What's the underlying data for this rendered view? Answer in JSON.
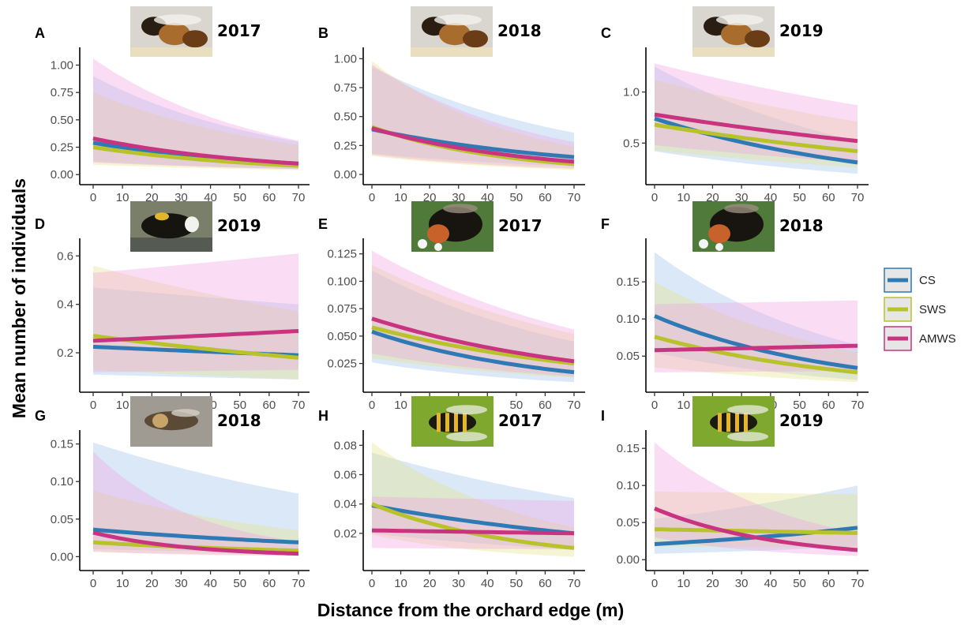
{
  "figure": {
    "xlabel": "Distance from the orchard edge (m)",
    "ylabel": "Mean number of individuals",
    "legend": {
      "placement": "right",
      "entries": [
        {
          "name": "CS",
          "color": "#2f79b5"
        },
        {
          "name": "SWS",
          "color": "#b8c22a"
        },
        {
          "name": "AMWS",
          "color": "#c8347f"
        }
      ]
    }
  },
  "chart_data": [
    {
      "panel": "A",
      "year": "2017",
      "photo": "honeybee-photo",
      "type": "line",
      "x": [
        0,
        70
      ],
      "xticks": [
        0,
        10,
        20,
        30,
        40,
        50,
        60,
        70
      ],
      "ylim": [
        -0.02,
        1.09
      ],
      "yticks": [
        0,
        0.25,
        0.5,
        0.75,
        1.0
      ],
      "yticklabels": [
        "0.00",
        "0.25",
        "0.50",
        "0.75",
        "1.00"
      ],
      "series": [
        {
          "name": "CS",
          "values": [
            0.29,
            0.1
          ],
          "lower": [
            0.12,
            0.05
          ],
          "upper": [
            0.9,
            0.3
          ]
        },
        {
          "name": "SWS",
          "values": [
            0.25,
            0.08
          ],
          "lower": [
            0.09,
            0.04
          ],
          "upper": [
            0.75,
            0.27
          ]
        },
        {
          "name": "AMWS",
          "values": [
            0.33,
            0.1
          ],
          "lower": [
            0.11,
            0.05
          ],
          "upper": [
            1.06,
            0.31
          ]
        }
      ]
    },
    {
      "panel": "B",
      "year": "2018",
      "photo": "honeybee-photo",
      "type": "line",
      "x": [
        0,
        70
      ],
      "xticks": [
        0,
        10,
        20,
        30,
        40,
        50,
        60,
        70
      ],
      "ylim": [
        -0.02,
        1.03
      ],
      "yticks": [
        0,
        0.25,
        0.5,
        0.75,
        1.0
      ],
      "yticklabels": [
        "0.00",
        "0.25",
        "0.50",
        "0.75",
        "1.00"
      ],
      "series": [
        {
          "name": "CS",
          "values": [
            0.39,
            0.15
          ],
          "lower": [
            0.18,
            0.07
          ],
          "upper": [
            0.93,
            0.36
          ]
        },
        {
          "name": "SWS",
          "values": [
            0.41,
            0.09
          ],
          "lower": [
            0.16,
            0.04
          ],
          "upper": [
            0.98,
            0.24
          ]
        },
        {
          "name": "AMWS",
          "values": [
            0.4,
            0.11
          ],
          "lower": [
            0.17,
            0.05
          ],
          "upper": [
            0.95,
            0.28
          ]
        }
      ]
    },
    {
      "panel": "C",
      "year": "2019",
      "photo": "honeybee-photo",
      "type": "line",
      "x": [
        0,
        70
      ],
      "xticks": [
        0,
        10,
        20,
        30,
        40,
        50,
        60,
        70
      ],
      "ylim": [
        0.17,
        1.36
      ],
      "yticks": [
        0.5,
        1.0
      ],
      "yticklabels": [
        "0.5",
        "1.0"
      ],
      "series": [
        {
          "name": "CS",
          "values": [
            0.74,
            0.31
          ],
          "lower": [
            0.42,
            0.2
          ],
          "upper": [
            1.25,
            0.52
          ]
        },
        {
          "name": "SWS",
          "values": [
            0.68,
            0.42
          ],
          "lower": [
            0.43,
            0.26
          ],
          "upper": [
            1.12,
            0.71
          ]
        },
        {
          "name": "AMWS",
          "values": [
            0.78,
            0.52
          ],
          "lower": [
            0.48,
            0.31
          ],
          "upper": [
            1.28,
            0.87
          ]
        }
      ]
    },
    {
      "panel": "D",
      "year": "2019",
      "photo": "bumblebee-photo",
      "type": "line",
      "x": [
        0,
        70
      ],
      "xticks": [
        0,
        10,
        20,
        30,
        40,
        50,
        60,
        70
      ],
      "ylim": [
        0.07,
        0.64
      ],
      "yticks": [
        0.2,
        0.4,
        0.6
      ],
      "yticklabels": [
        "0.2",
        "0.4",
        "0.6"
      ],
      "series": [
        {
          "name": "CS",
          "values": [
            0.225,
            0.19
          ],
          "lower": [
            0.11,
            0.09
          ],
          "upper": [
            0.47,
            0.4
          ]
        },
        {
          "name": "SWS",
          "values": [
            0.27,
            0.18
          ],
          "lower": [
            0.13,
            0.09
          ],
          "upper": [
            0.56,
            0.37
          ]
        },
        {
          "name": "AMWS",
          "values": [
            0.25,
            0.29
          ],
          "lower": [
            0.12,
            0.13
          ],
          "upper": [
            0.53,
            0.61
          ]
        }
      ]
    },
    {
      "panel": "E",
      "year": "2017",
      "photo": "buff-tailed-bumblebee-photo",
      "type": "line",
      "x": [
        0,
        70
      ],
      "xticks": [
        0,
        10,
        20,
        30,
        40,
        50,
        60,
        70
      ],
      "ylim": [
        0.006,
        0.132
      ],
      "yticks": [
        0.025,
        0.05,
        0.075,
        0.1,
        0.125
      ],
      "yticklabels": [
        "0.025",
        "0.050",
        "0.075",
        "0.100",
        "0.125"
      ],
      "series": [
        {
          "name": "CS",
          "values": [
            0.054,
            0.017
          ],
          "lower": [
            0.026,
            0.008
          ],
          "upper": [
            0.11,
            0.045
          ]
        },
        {
          "name": "SWS",
          "values": [
            0.058,
            0.025
          ],
          "lower": [
            0.03,
            0.012
          ],
          "upper": [
            0.115,
            0.052
          ]
        },
        {
          "name": "AMWS",
          "values": [
            0.066,
            0.027
          ],
          "lower": [
            0.034,
            0.013
          ],
          "upper": [
            0.128,
            0.056
          ]
        }
      ]
    },
    {
      "panel": "F",
      "year": "2018",
      "photo": "buff-tailed-bumblebee-photo",
      "type": "line",
      "x": [
        0,
        70
      ],
      "xticks": [
        0,
        10,
        20,
        30,
        40,
        50,
        60,
        70
      ],
      "ylim": [
        0.012,
        0.198
      ],
      "yticks": [
        0.05,
        0.1,
        0.15
      ],
      "yticklabels": [
        "0.05",
        "0.10",
        "0.15"
      ],
      "series": [
        {
          "name": "CS",
          "values": [
            0.104,
            0.034
          ],
          "lower": [
            0.055,
            0.018
          ],
          "upper": [
            0.19,
            0.065
          ]
        },
        {
          "name": "SWS",
          "values": [
            0.076,
            0.028
          ],
          "lower": [
            0.035,
            0.015
          ],
          "upper": [
            0.15,
            0.055
          ]
        },
        {
          "name": "AMWS",
          "values": [
            0.058,
            0.064
          ],
          "lower": [
            0.028,
            0.03
          ],
          "upper": [
            0.12,
            0.125
          ]
        }
      ]
    },
    {
      "panel": "G",
      "year": "2018",
      "photo": "solitary-bee-photo",
      "type": "line",
      "x": [
        0,
        70
      ],
      "xticks": [
        0,
        10,
        20,
        30,
        40,
        50,
        60,
        70
      ],
      "ylim": [
        -0.008,
        0.158
      ],
      "yticks": [
        0,
        0.05,
        0.1,
        0.15
      ],
      "yticklabels": [
        "0.00",
        "0.05",
        "0.10",
        "0.15"
      ],
      "series": [
        {
          "name": "CS",
          "values": [
            0.036,
            0.019
          ],
          "lower": [
            0.01,
            0.005
          ],
          "upper": [
            0.152,
            0.084
          ]
        },
        {
          "name": "SWS",
          "values": [
            0.019,
            0.008
          ],
          "lower": [
            0.006,
            0.002
          ],
          "upper": [
            0.088,
            0.035
          ]
        },
        {
          "name": "AMWS",
          "values": [
            0.032,
            0.004
          ],
          "lower": [
            0.007,
            0.001
          ],
          "upper": [
            0.14,
            0.02
          ]
        }
      ]
    },
    {
      "panel": "H",
      "year": "2017",
      "photo": "hoverfly-photo",
      "type": "line",
      "x": [
        0,
        70
      ],
      "xticks": [
        0,
        10,
        20,
        30,
        40,
        50,
        60,
        70
      ],
      "ylim": [
        0.0,
        0.085
      ],
      "yticks": [
        0.02,
        0.04,
        0.06,
        0.08
      ],
      "yticklabels": [
        "0.02",
        "0.04",
        "0.06",
        "0.08"
      ],
      "series": [
        {
          "name": "CS",
          "values": [
            0.039,
            0.02
          ],
          "lower": [
            0.02,
            0.009
          ],
          "upper": [
            0.075,
            0.044
          ]
        },
        {
          "name": "SWS",
          "values": [
            0.04,
            0.01
          ],
          "lower": [
            0.019,
            0.004
          ],
          "upper": [
            0.082,
            0.024
          ]
        },
        {
          "name": "AMWS",
          "values": [
            0.022,
            0.02
          ],
          "lower": [
            0.01,
            0.009
          ],
          "upper": [
            0.045,
            0.042
          ]
        }
      ]
    },
    {
      "panel": "I",
      "year": "2019",
      "photo": "hoverfly-photo",
      "type": "line",
      "x": [
        0,
        70
      ],
      "xticks": [
        0,
        10,
        20,
        30,
        40,
        50,
        60,
        70
      ],
      "ylim": [
        -0.004,
        0.164
      ],
      "yticks": [
        0,
        0.05,
        0.1,
        0.15
      ],
      "yticklabels": [
        "0.00",
        "0.05",
        "0.10",
        "0.15"
      ],
      "series": [
        {
          "name": "CS",
          "values": [
            0.021,
            0.043
          ],
          "lower": [
            0.008,
            0.018
          ],
          "upper": [
            0.055,
            0.1
          ]
        },
        {
          "name": "SWS",
          "values": [
            0.041,
            0.036
          ],
          "lower": [
            0.018,
            0.016
          ],
          "upper": [
            0.092,
            0.088
          ]
        },
        {
          "name": "AMWS",
          "values": [
            0.069,
            0.013
          ],
          "lower": [
            0.03,
            0.005
          ],
          "upper": [
            0.158,
            0.036
          ]
        }
      ]
    }
  ]
}
